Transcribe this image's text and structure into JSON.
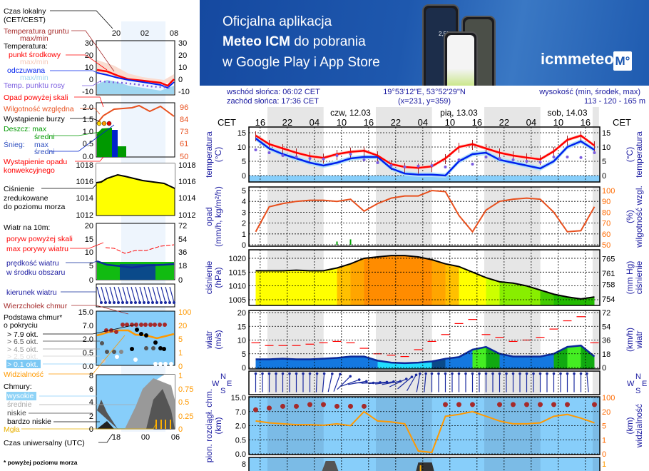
{
  "banner": {
    "line1": "Oficjalna aplikacja",
    "line2_bold": "Meteo ICM",
    "line2_rest": " do pobrania",
    "line3": "w Google Play i App Store",
    "logo_text": "icmmeteo",
    "logo_badge": "M°",
    "phone_temp": "2,5°"
  },
  "header": {
    "sunrise": "wschód słońca: 06:02 CET",
    "sunset": "zachód słońca: 17:36 CET",
    "coords": "19°53'12\"E, 53°52'29\"N",
    "grid": "(x=231,  y=359)",
    "elev_label": "wysokość (min, środek, max)",
    "elev_value": "113 - 120 - 165 m"
  },
  "legend": {
    "local_time": "Czas lokalny",
    "local_time_zone": "(CET/CEST)",
    "ground_temp": "Temperatura gruntu",
    "ground_temp_mm": "max/min",
    "temperature": "Temperatura:",
    "mid_point": "punkt środkowy",
    "mid_mm": "max/min",
    "feels_like": "odczuwana",
    "feels_mm": "max/min",
    "dew_point": "Temp. punktu rosy",
    "precip_over": "Opad powyżej skali",
    "humidity": "Wilgotność względna",
    "storm": "Wystąpienie burzy",
    "rain_max": "Deszcz: max",
    "rain_avg": "średni",
    "snow": "Śnieg:",
    "snow_max": "max",
    "snow_avg": "średni",
    "convective1": "Wystąpienie opadu",
    "convective2": "konwekcyjnego",
    "pressure1": "Ciśnienie",
    "pressure2": "zredukowane",
    "pressure3": "do poziomu morza",
    "wind10": "Wiatr na 10m:",
    "gust_over": "poryw powyżej skali",
    "gust_max": "max porywy wiatru",
    "wind_speed1": "prędkość wiatru",
    "wind_speed2": "w środku obszaru",
    "wind_dir": "kierunek wiatru",
    "cloud_top": "Wierzchołek chmur",
    "cloud_base1": "Podstawa chmur*",
    "cloud_base2": "o pokryciu",
    "okt79": "> 7.9 okt.",
    "okt65": "> 6.5 okt.",
    "okt45": "> 4.5 okt.",
    "okt25": "> 2.5 okt.",
    "okt01": "> 0.1 okt.",
    "visibility": "Widzialność",
    "clouds": "Chmury:",
    "high": "wysokie",
    "mid": "średnie",
    "low": "niskie",
    "very_low": "bardzo niskie",
    "fog": "Mgła",
    "utc": "Czas uniwersalny (UTC)",
    "footnote": "* powyżej poziomu morza",
    "local_ticks": [
      "20",
      "02",
      "08"
    ],
    "utc_ticks": [
      "18",
      "00",
      "06"
    ],
    "temp_ticks": [
      "30",
      "20",
      "10",
      "0",
      "-10"
    ],
    "precip_ticks": [
      "2.0",
      "1.5",
      "1.0",
      "0.5",
      "0.0"
    ],
    "humidity_ticks": [
      "96",
      "84",
      "73",
      "61",
      "50"
    ],
    "pressure_ticks": [
      "1018",
      "1016",
      "1014",
      "1012"
    ],
    "wind_ticks": [
      "20",
      "15",
      "10",
      "5",
      "0"
    ],
    "wind_kmh_ticks": [
      "72",
      "54",
      "36",
      "18",
      "0"
    ],
    "base_ticks": [
      "15.0",
      "7.0",
      "2.0",
      "0.5",
      "0.0"
    ],
    "vis_ticks": [
      "100",
      "20",
      "5",
      "1",
      "0"
    ],
    "cloud_ticks": [
      "8",
      "6",
      "4",
      "2",
      "0"
    ],
    "cloud_frac_ticks": [
      "1",
      "0.75",
      "0.5",
      "0.25",
      "0"
    ]
  },
  "colors": {
    "temp": "#ff0000",
    "feels": "#0022ee",
    "dew": "#7a5ce0",
    "humidity": "#e8501e",
    "precip": "#00a000",
    "gust": "#ff0000",
    "wind": "#0b2a9a",
    "visibility": "#ff9900",
    "cloud_top": "#a52a2a",
    "axis_label": "#1a1aa0",
    "night": "#e6e6e6"
  },
  "chart_data": {
    "type": "line",
    "timezone_label": "CET",
    "day_labels": [
      {
        "label": "czw, 12.03",
        "at": "12.03 12:00"
      },
      {
        "label": "pią, 13.03",
        "at": "13.03 12:00"
      },
      {
        "label": "sob, 14.03",
        "at": "14.03 12:00"
      }
    ],
    "time_ticks": [
      "16",
      "22",
      "04",
      "10",
      "16",
      "22",
      "04",
      "10",
      "16",
      "22",
      "04",
      "10",
      "16"
    ],
    "time_tick_first": "11.03 16:00",
    "night_periods": [
      [
        "11.03 17:36",
        "12.03 06:02"
      ],
      [
        "12.03 17:36",
        "13.03 06:02"
      ],
      [
        "13.03 17:36",
        "14.03 06:02"
      ],
      [
        "14.03 17:36",
        "14.03 19:00"
      ]
    ],
    "x": [
      "11.03 15:00",
      "11.03 18:00",
      "11.03 21:00",
      "12.03 00:00",
      "12.03 03:00",
      "12.03 06:00",
      "12.03 09:00",
      "12.03 12:00",
      "12.03 15:00",
      "12.03 18:00",
      "12.03 21:00",
      "13.03 00:00",
      "13.03 03:00",
      "13.03 06:00",
      "13.03 09:00",
      "13.03 12:00",
      "13.03 15:00",
      "13.03 18:00",
      "13.03 21:00",
      "14.03 00:00",
      "14.03 03:00",
      "14.03 06:00",
      "14.03 09:00",
      "14.03 12:00",
      "14.03 15:00",
      "14.03 18:00"
    ],
    "panels": [
      {
        "id": "temperature",
        "left_label": [
          "temperatura",
          "(°C)"
        ],
        "right_label": [
          "(°C)",
          "temperatura"
        ],
        "ticks": [
          15,
          10,
          5,
          0
        ],
        "right_ticks": [
          15,
          10,
          5,
          0
        ],
        "series": [
          {
            "id": "temp",
            "values": [
              14,
              11,
              9.5,
              8,
              6.8,
              6.2,
              7.5,
              8.3,
              8.7,
              7,
              4,
              3,
              2.7,
              3.2,
              6,
              10,
              11,
              9.5,
              8,
              7,
              6.3,
              5.7,
              8.5,
              12.5,
              14,
              10.5
            ]
          },
          {
            "id": "feels",
            "values": [
              13,
              9.5,
              7.5,
              6,
              4.5,
              3.5,
              4.5,
              6,
              6.5,
              6.5,
              2.5,
              0.7,
              0.3,
              0.3,
              0,
              5,
              7.5,
              8,
              5.5,
              4.5,
              3.5,
              2.5,
              5,
              10,
              12,
              9
            ]
          },
          {
            "id": "dew",
            "values": [
              9,
              8,
              7,
              6.5,
              6,
              5.8,
              7,
              7.5,
              5.5,
              4.5,
              3.5,
              3,
              3.3,
              3.5,
              3,
              5.5,
              4,
              6.5,
              6,
              5.5,
              5,
              4.7,
              6.5,
              6.5,
              6.3,
              8
            ]
          }
        ]
      },
      {
        "id": "precip_humidity",
        "left_label": [
          "opad",
          "(mm/h, kg/m²/h)"
        ],
        "right_label": [
          "(%)",
          "wilgotność wzgl."
        ],
        "ticks": [
          5,
          4,
          3,
          2,
          1,
          0
        ],
        "right_ticks": [
          100,
          90,
          80,
          70,
          60,
          50
        ],
        "series": [
          {
            "id": "humidity",
            "axis": "right",
            "values": [
              62,
              85,
              88,
              90,
              91,
              91,
              90,
              92,
              81,
              88,
              93,
              95,
              95,
              100,
              99,
              77,
              62,
              82,
              90,
              92,
              93,
              92,
              80,
              62,
              63,
              85
            ]
          },
          {
            "id": "precip",
            "values": [
              0,
              0,
              0,
              0,
              0,
              0,
              0.3,
              0.5,
              0,
              0,
              0,
              0,
              0,
              0,
              0,
              0,
              0,
              0,
              0,
              0,
              0,
              0,
              0,
              0,
              0,
              0
            ]
          }
        ]
      },
      {
        "id": "pressure",
        "left_label": [
          "ciśnienie",
          "(hPa)"
        ],
        "right_label": [
          "(mm Hg)",
          "ciśnienie"
        ],
        "ticks": [
          1020,
          1015,
          1010,
          1005
        ],
        "right_ticks": [
          765,
          761,
          758,
          754
        ],
        "series": [
          {
            "id": "pressure",
            "values": [
              1015.5,
              1015.5,
              1015.5,
              1015.7,
              1015.5,
              1015.5,
              1016.5,
              1018,
              1020,
              1020.5,
              1021,
              1021,
              1020.5,
              1019.5,
              1018,
              1017,
              1015,
              1013,
              1011.5,
              1011,
              1010,
              1008.5,
              1007,
              1006,
              1005.3,
              1006
            ]
          }
        ]
      },
      {
        "id": "wind",
        "left_label": [
          "wiatr",
          "(m/s)"
        ],
        "right_label": [
          "(km/h)",
          "wiatr"
        ],
        "ticks": [
          20,
          15,
          10,
          5,
          0
        ],
        "right_ticks": [
          72,
          54,
          36,
          18,
          0
        ],
        "series": [
          {
            "id": "speed",
            "values": [
              3,
              3,
              3.2,
              3,
              3,
              3.2,
              3.5,
              4,
              4,
              2.5,
              1.8,
              1.6,
              1.8,
              2.2,
              3.2,
              3.8,
              6.5,
              7.5,
              5,
              4,
              4,
              4,
              5,
              7.5,
              8,
              4
            ]
          },
          {
            "id": "gust",
            "values": [
              9,
              8,
              8,
              8,
              8.5,
              9,
              9.5,
              9,
              7,
              5,
              4.5,
              4,
              6.5,
              9.5,
              12,
              16,
              17.5,
              12,
              11,
              9.5,
              10,
              11,
              14,
              17,
              18.5,
              9
            ]
          }
        ]
      },
      {
        "id": "wind_direction",
        "compass": [
          "W",
          "S",
          "N",
          "E"
        ],
        "series": [
          {
            "id": "direction_deg",
            "values": [
              180,
              180,
              180,
              180,
              180,
              185,
              200,
              250,
              270,
              265,
              260,
              230,
              190,
              180,
              180,
              180,
              180,
              180,
              180,
              180,
              180,
              180,
              180,
              180,
              180,
              170
            ]
          }
        ]
      },
      {
        "id": "cloud_base_visibility",
        "left_label": [
          "pion. rozciągł. chm.",
          "(km)"
        ],
        "right_label": [
          "(km)",
          "widzialność"
        ],
        "ticks": [
          15.0,
          7.0,
          2.0,
          0.5,
          0.0
        ],
        "right_ticks": [
          100,
          20,
          5,
          1,
          0
        ],
        "scale": "piecewise",
        "series": [
          {
            "id": "visibility",
            "axis": "right",
            "values": [
              10,
              8,
              7,
              6,
              6,
              5.5,
              7,
              5,
              20,
              10,
              9,
              7,
              0.2,
              0.1,
              15,
              17,
              20,
              15,
              10,
              7,
              7,
              8,
              15,
              17,
              13,
              8
            ]
          },
          {
            "id": "cloud_top",
            "values": [
              8,
              9,
              10,
              10,
              11,
              11,
              10,
              10,
              10,
              null,
              null,
              null,
              null,
              null,
              11,
              11,
              11,
              null,
              11,
              11,
              11,
              11,
              11,
              11,
              null,
              11
            ]
          }
        ]
      },
      {
        "id": "clouds",
        "ticks": [
          8
        ],
        "right_ticks": [
          1
        ]
      }
    ]
  }
}
